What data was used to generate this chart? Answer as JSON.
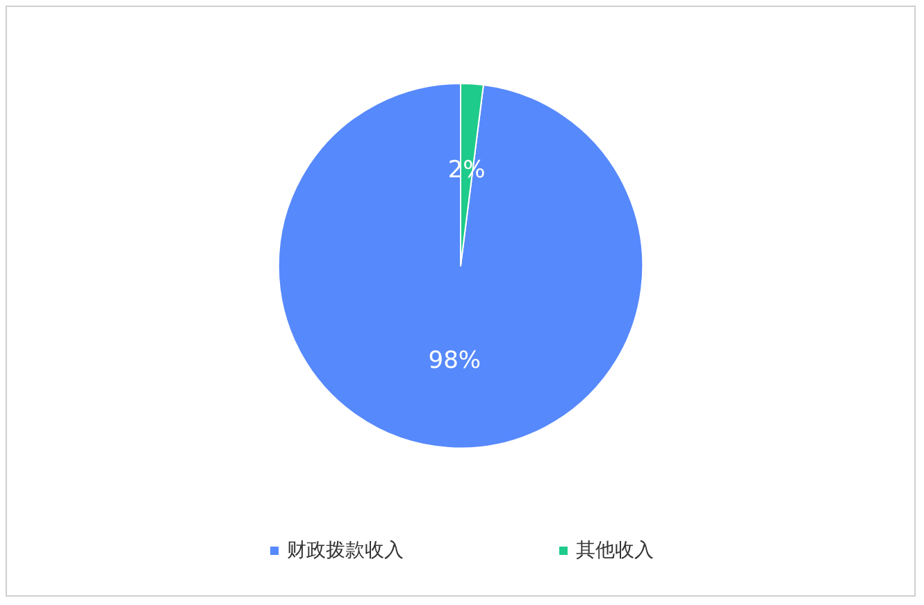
{
  "chart_data": {
    "type": "pie",
    "categories": [
      "财政拨款收入",
      "其他收入"
    ],
    "values": [
      98,
      2
    ],
    "colors": [
      "#5689fc",
      "#1ecb8a"
    ],
    "value_labels": [
      "98%",
      "2%"
    ],
    "legend": "bottom"
  }
}
